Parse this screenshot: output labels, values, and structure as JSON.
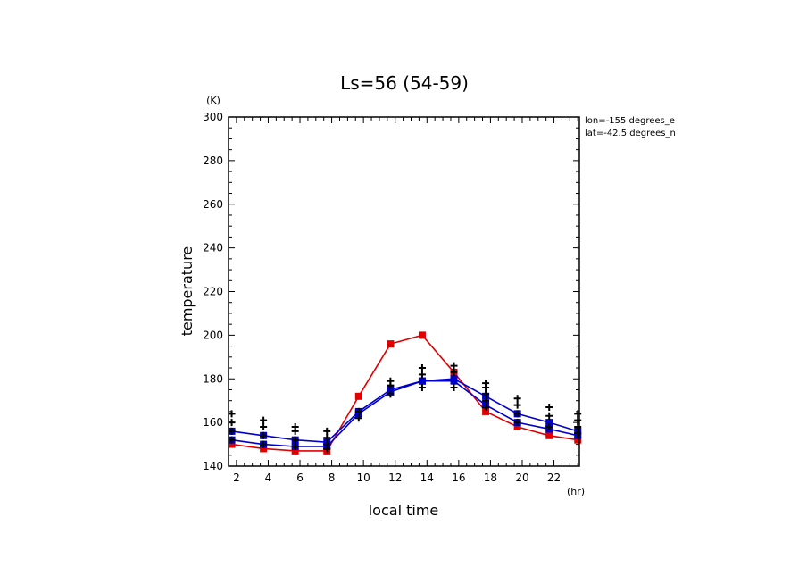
{
  "chart_data": {
    "type": "line",
    "title": "Ls=56 (54-59)",
    "xlabel": "local time",
    "ylabel": "temperature",
    "x_unit": "(hr)",
    "y_unit": "(K)",
    "xlim": [
      1.5,
      23.6
    ],
    "ylim": [
      140,
      300
    ],
    "x_ticks": [
      2,
      4,
      6,
      8,
      10,
      12,
      14,
      16,
      18,
      20,
      22
    ],
    "y_ticks": [
      140,
      160,
      180,
      200,
      220,
      240,
      260,
      280,
      300
    ],
    "annotations": [
      "lon=-155 degrees_e",
      "lat=-42.5 degrees_n"
    ],
    "grid": false,
    "series": [
      {
        "color": "#e00000",
        "x": [
          1.7,
          3.7,
          5.7,
          7.7,
          9.7,
          11.7,
          13.7,
          15.7,
          17.7,
          19.7,
          21.7,
          23.5
        ],
        "y": [
          150,
          148,
          147,
          147,
          172,
          196,
          200,
          183,
          165,
          158,
          154,
          152
        ]
      },
      {
        "color": "#0000cc",
        "x": [
          1.7,
          3.7,
          5.7,
          7.7,
          9.7,
          11.7,
          13.7,
          15.7,
          17.7,
          19.7,
          21.7,
          23.5
        ],
        "y": [
          152,
          150,
          149,
          149,
          164,
          174,
          179,
          179,
          168,
          160,
          157,
          154
        ]
      },
      {
        "color": "#0000cc",
        "x": [
          1.7,
          3.7,
          5.7,
          7.7,
          9.7,
          11.7,
          13.7,
          15.7,
          17.7,
          19.7,
          21.7,
          23.5
        ],
        "y": [
          156,
          154,
          152,
          151,
          165,
          175,
          179,
          180,
          172,
          164,
          160,
          156
        ]
      }
    ],
    "observations": {
      "color": "#000000",
      "points": [
        [
          1.7,
          164
        ],
        [
          1.7,
          160
        ],
        [
          1.7,
          156
        ],
        [
          1.7,
          152
        ],
        [
          3.7,
          161
        ],
        [
          3.7,
          158
        ],
        [
          3.7,
          154
        ],
        [
          3.7,
          150
        ],
        [
          5.7,
          158
        ],
        [
          5.7,
          156
        ],
        [
          5.7,
          152
        ],
        [
          5.7,
          149
        ],
        [
          7.7,
          156
        ],
        [
          7.7,
          153
        ],
        [
          7.7,
          150
        ],
        [
          7.7,
          148
        ],
        [
          9.7,
          165
        ],
        [
          9.7,
          162
        ],
        [
          11.7,
          179
        ],
        [
          11.7,
          177
        ],
        [
          11.7,
          173
        ],
        [
          13.7,
          185
        ],
        [
          13.7,
          182
        ],
        [
          13.7,
          176
        ],
        [
          15.7,
          186
        ],
        [
          15.7,
          183
        ],
        [
          15.7,
          176
        ],
        [
          17.7,
          178
        ],
        [
          17.7,
          176
        ],
        [
          17.7,
          173
        ],
        [
          17.7,
          170
        ],
        [
          17.7,
          167
        ],
        [
          19.7,
          171
        ],
        [
          19.7,
          168
        ],
        [
          19.7,
          164
        ],
        [
          19.7,
          160
        ],
        [
          21.7,
          167
        ],
        [
          21.7,
          163
        ],
        [
          21.7,
          158
        ],
        [
          23.5,
          164
        ],
        [
          23.5,
          161
        ],
        [
          23.5,
          158
        ],
        [
          23.5,
          155
        ]
      ]
    }
  }
}
